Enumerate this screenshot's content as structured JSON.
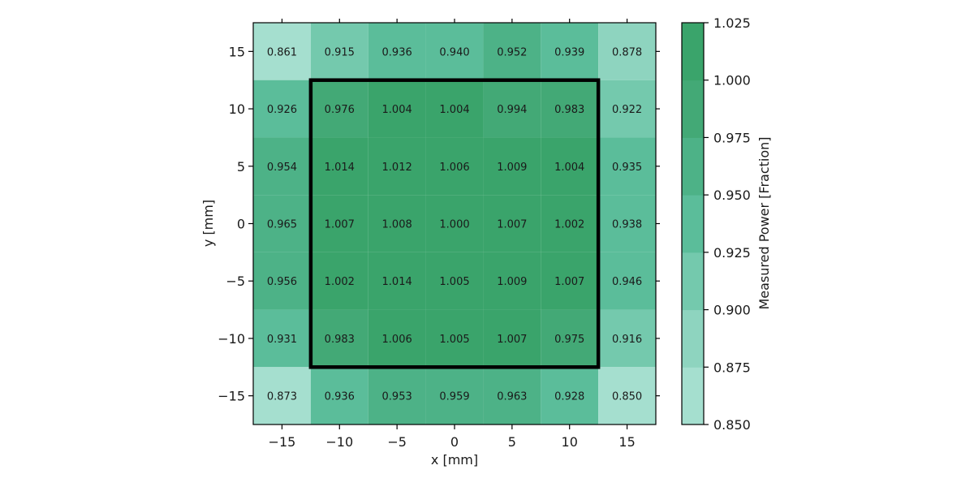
{
  "chart_data": {
    "type": "heatmap",
    "xlabel": "x [mm]",
    "ylabel": "y [mm]",
    "x": [
      -15,
      -10,
      -5,
      0,
      5,
      10,
      15
    ],
    "y": [
      15,
      10,
      5,
      0,
      -5,
      -10,
      -15
    ],
    "xlim": [
      -17.5,
      17.5
    ],
    "ylim": [
      -17.5,
      17.5
    ],
    "x_ticks": [
      -15,
      -10,
      -5,
      0,
      5,
      10,
      15
    ],
    "y_ticks": [
      15,
      10,
      5,
      0,
      -5,
      -10,
      -15
    ],
    "tick_labels_x": [
      "−15",
      "−10",
      "−5",
      "0",
      "5",
      "10",
      "15"
    ],
    "tick_labels_y": [
      "15",
      "10",
      "5",
      "0",
      "−5",
      "−10",
      "−15"
    ],
    "values": [
      [
        0.861,
        0.915,
        0.936,
        0.94,
        0.952,
        0.939,
        0.878
      ],
      [
        0.926,
        0.976,
        1.004,
        1.004,
        0.994,
        0.983,
        0.922
      ],
      [
        0.954,
        1.014,
        1.012,
        1.006,
        1.009,
        1.004,
        0.935
      ],
      [
        0.965,
        1.007,
        1.008,
        1.0,
        1.007,
        1.002,
        0.938
      ],
      [
        0.956,
        1.002,
        1.014,
        1.005,
        1.009,
        1.007,
        0.946
      ],
      [
        0.931,
        0.983,
        1.006,
        1.005,
        1.007,
        0.975,
        0.916
      ],
      [
        0.873,
        0.936,
        0.953,
        0.959,
        0.963,
        0.928,
        0.85
      ]
    ],
    "value_labels": [
      [
        "0.861",
        "0.915",
        "0.936",
        "0.940",
        "0.952",
        "0.939",
        "0.878"
      ],
      [
        "0.926",
        "0.976",
        "1.004",
        "1.004",
        "0.994",
        "0.983",
        "0.922"
      ],
      [
        "0.954",
        "1.014",
        "1.012",
        "1.006",
        "1.009",
        "1.004",
        "0.935"
      ],
      [
        "0.965",
        "1.007",
        "1.008",
        "1.000",
        "1.007",
        "1.002",
        "0.938"
      ],
      [
        "0.956",
        "1.002",
        "1.014",
        "1.005",
        "1.009",
        "1.007",
        "0.946"
      ],
      [
        "0.931",
        "0.983",
        "1.006",
        "1.005",
        "1.007",
        "0.975",
        "0.916"
      ],
      [
        "0.873",
        "0.936",
        "0.953",
        "0.959",
        "0.963",
        "0.928",
        "0.850"
      ]
    ],
    "highlight_box": {
      "x_range": [
        -12.5,
        12.5
      ],
      "y_range": [
        -12.5,
        12.5
      ],
      "color": "#000000"
    },
    "colorbar": {
      "label": "Measured Power [Fraction]",
      "levels": [
        0.85,
        0.875,
        0.9,
        0.925,
        0.95,
        0.975,
        1.0,
        1.025
      ],
      "tick_labels": [
        "0.850",
        "0.875",
        "0.900",
        "0.925",
        "0.950",
        "0.975",
        "1.000",
        "1.025"
      ],
      "colors": [
        "#a5dfcf",
        "#8ed4bf",
        "#74c9ad",
        "#5bbd9a",
        "#4db287",
        "#43a976",
        "#3aa46b"
      ]
    }
  }
}
